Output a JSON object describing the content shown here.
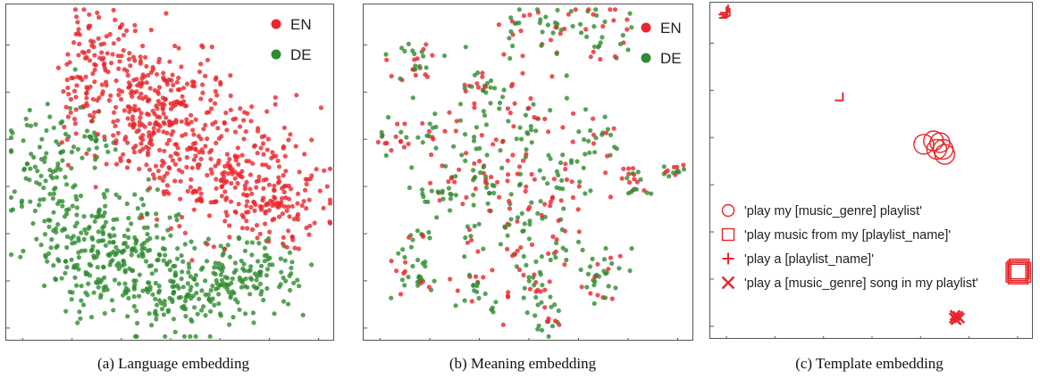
{
  "chart_data": [
    {
      "type": "scatter",
      "caption": "(a) Language embedding",
      "legend_placement": "top-right",
      "series": [
        {
          "name": "EN",
          "color": "#e8262b",
          "clusters": [
            {
              "cx": 0.27,
              "cy": 0.85,
              "sx": 0.06,
              "sy": 0.06,
              "n": 70
            },
            {
              "cx": 0.45,
              "cy": 0.7,
              "sx": 0.11,
              "sy": 0.1,
              "n": 280
            },
            {
              "cx": 0.66,
              "cy": 0.52,
              "sx": 0.12,
              "sy": 0.1,
              "n": 220
            },
            {
              "cx": 0.82,
              "cy": 0.4,
              "sx": 0.09,
              "sy": 0.06,
              "n": 120
            },
            {
              "cx": 0.22,
              "cy": 0.72,
              "sx": 0.04,
              "sy": 0.06,
              "n": 25
            }
          ]
        },
        {
          "name": "DE",
          "color": "#2e8b2e",
          "clusters": [
            {
              "cx": 0.14,
              "cy": 0.45,
              "sx": 0.07,
              "sy": 0.12,
              "n": 130
            },
            {
              "cx": 0.32,
              "cy": 0.27,
              "sx": 0.1,
              "sy": 0.09,
              "n": 220
            },
            {
              "cx": 0.55,
              "cy": 0.16,
              "sx": 0.13,
              "sy": 0.07,
              "n": 200
            },
            {
              "cx": 0.76,
              "cy": 0.2,
              "sx": 0.07,
              "sy": 0.05,
              "n": 70
            },
            {
              "cx": 0.27,
              "cy": 0.58,
              "sx": 0.03,
              "sy": 0.04,
              "n": 20
            }
          ]
        }
      ]
    },
    {
      "type": "scatter",
      "caption": "(b) Meaning embedding",
      "legend_placement": "top-right",
      "series": [
        {
          "name": "EN",
          "color": "#e8262b"
        },
        {
          "name": "DE",
          "color": "#2e8b2e"
        }
      ],
      "clusters": [
        {
          "cx": 0.16,
          "cy": 0.84,
          "sx": 0.04,
          "sy": 0.04,
          "n": 28
        },
        {
          "cx": 0.46,
          "cy": 0.92,
          "sx": 0.03,
          "sy": 0.04,
          "n": 16
        },
        {
          "cx": 0.56,
          "cy": 0.92,
          "sx": 0.04,
          "sy": 0.04,
          "n": 24
        },
        {
          "cx": 0.74,
          "cy": 0.92,
          "sx": 0.05,
          "sy": 0.04,
          "n": 36
        },
        {
          "cx": 0.35,
          "cy": 0.78,
          "sx": 0.03,
          "sy": 0.04,
          "n": 16
        },
        {
          "cx": 0.08,
          "cy": 0.6,
          "sx": 0.03,
          "sy": 0.03,
          "n": 18
        },
        {
          "cx": 0.2,
          "cy": 0.62,
          "sx": 0.03,
          "sy": 0.03,
          "n": 12
        },
        {
          "cx": 0.44,
          "cy": 0.62,
          "sx": 0.12,
          "sy": 0.1,
          "n": 110
        },
        {
          "cx": 0.72,
          "cy": 0.6,
          "sx": 0.04,
          "sy": 0.04,
          "n": 20
        },
        {
          "cx": 0.22,
          "cy": 0.45,
          "sx": 0.04,
          "sy": 0.04,
          "n": 28
        },
        {
          "cx": 0.37,
          "cy": 0.47,
          "sx": 0.04,
          "sy": 0.04,
          "n": 24
        },
        {
          "cx": 0.59,
          "cy": 0.45,
          "sx": 0.05,
          "sy": 0.05,
          "n": 36
        },
        {
          "cx": 0.8,
          "cy": 0.48,
          "sx": 0.03,
          "sy": 0.03,
          "n": 22
        },
        {
          "cx": 0.94,
          "cy": 0.51,
          "sx": 0.02,
          "sy": 0.015,
          "n": 14
        },
        {
          "cx": 0.47,
          "cy": 0.33,
          "sx": 0.06,
          "sy": 0.05,
          "n": 40
        },
        {
          "cx": 0.17,
          "cy": 0.31,
          "sx": 0.02,
          "sy": 0.02,
          "n": 8
        },
        {
          "cx": 0.35,
          "cy": 0.28,
          "sx": 0.03,
          "sy": 0.03,
          "n": 10
        },
        {
          "cx": 0.6,
          "cy": 0.28,
          "sx": 0.03,
          "sy": 0.03,
          "n": 14
        },
        {
          "cx": 0.15,
          "cy": 0.2,
          "sx": 0.04,
          "sy": 0.04,
          "n": 32
        },
        {
          "cx": 0.32,
          "cy": 0.16,
          "sx": 0.03,
          "sy": 0.04,
          "n": 18
        },
        {
          "cx": 0.52,
          "cy": 0.16,
          "sx": 0.04,
          "sy": 0.04,
          "n": 28
        },
        {
          "cx": 0.72,
          "cy": 0.2,
          "sx": 0.04,
          "sy": 0.04,
          "n": 34
        },
        {
          "cx": 0.41,
          "cy": 0.1,
          "sx": 0.02,
          "sy": 0.02,
          "n": 8
        },
        {
          "cx": 0.57,
          "cy": 0.06,
          "sx": 0.03,
          "sy": 0.02,
          "n": 14
        }
      ]
    },
    {
      "type": "scatter",
      "caption": "(c) Template embedding",
      "legend_placement": "bottom-left",
      "series": [
        {
          "name": "'play my [music_genre] playlist'",
          "marker": "circle",
          "color": "#e8262b",
          "points": [
            [
              0.66,
              0.58
            ],
            [
              0.69,
              0.59
            ],
            [
              0.71,
              0.585
            ],
            [
              0.72,
              0.565
            ],
            [
              0.725,
              0.55
            ],
            [
              0.7,
              0.565
            ]
          ]
        },
        {
          "name": "'play music from my [playlist_name]'",
          "marker": "square",
          "color": "#e8262b",
          "points": [
            [
              0.945,
              0.2
            ],
            [
              0.95,
              0.205
            ],
            [
              0.955,
              0.21
            ],
            [
              0.96,
              0.2
            ],
            [
              0.952,
              0.195
            ]
          ]
        },
        {
          "name": "'play a [playlist_name]'",
          "marker": "plus",
          "color": "#e8262b",
          "points": [
            [
              0.05,
              0.965
            ],
            [
              0.055,
              0.97
            ],
            [
              0.06,
              0.96
            ],
            [
              0.052,
              0.955
            ],
            [
              0.41,
              0.71
            ]
          ]
        },
        {
          "name": "'play a [music_genre] song in my playlist'",
          "marker": "cross",
          "color": "#e8262b",
          "points": [
            [
              0.77,
              0.05
            ],
            [
              0.78,
              0.055
            ],
            [
              0.775,
              0.045
            ],
            [
              0.785,
              0.05
            ],
            [
              0.772,
              0.058
            ]
          ]
        }
      ]
    }
  ]
}
